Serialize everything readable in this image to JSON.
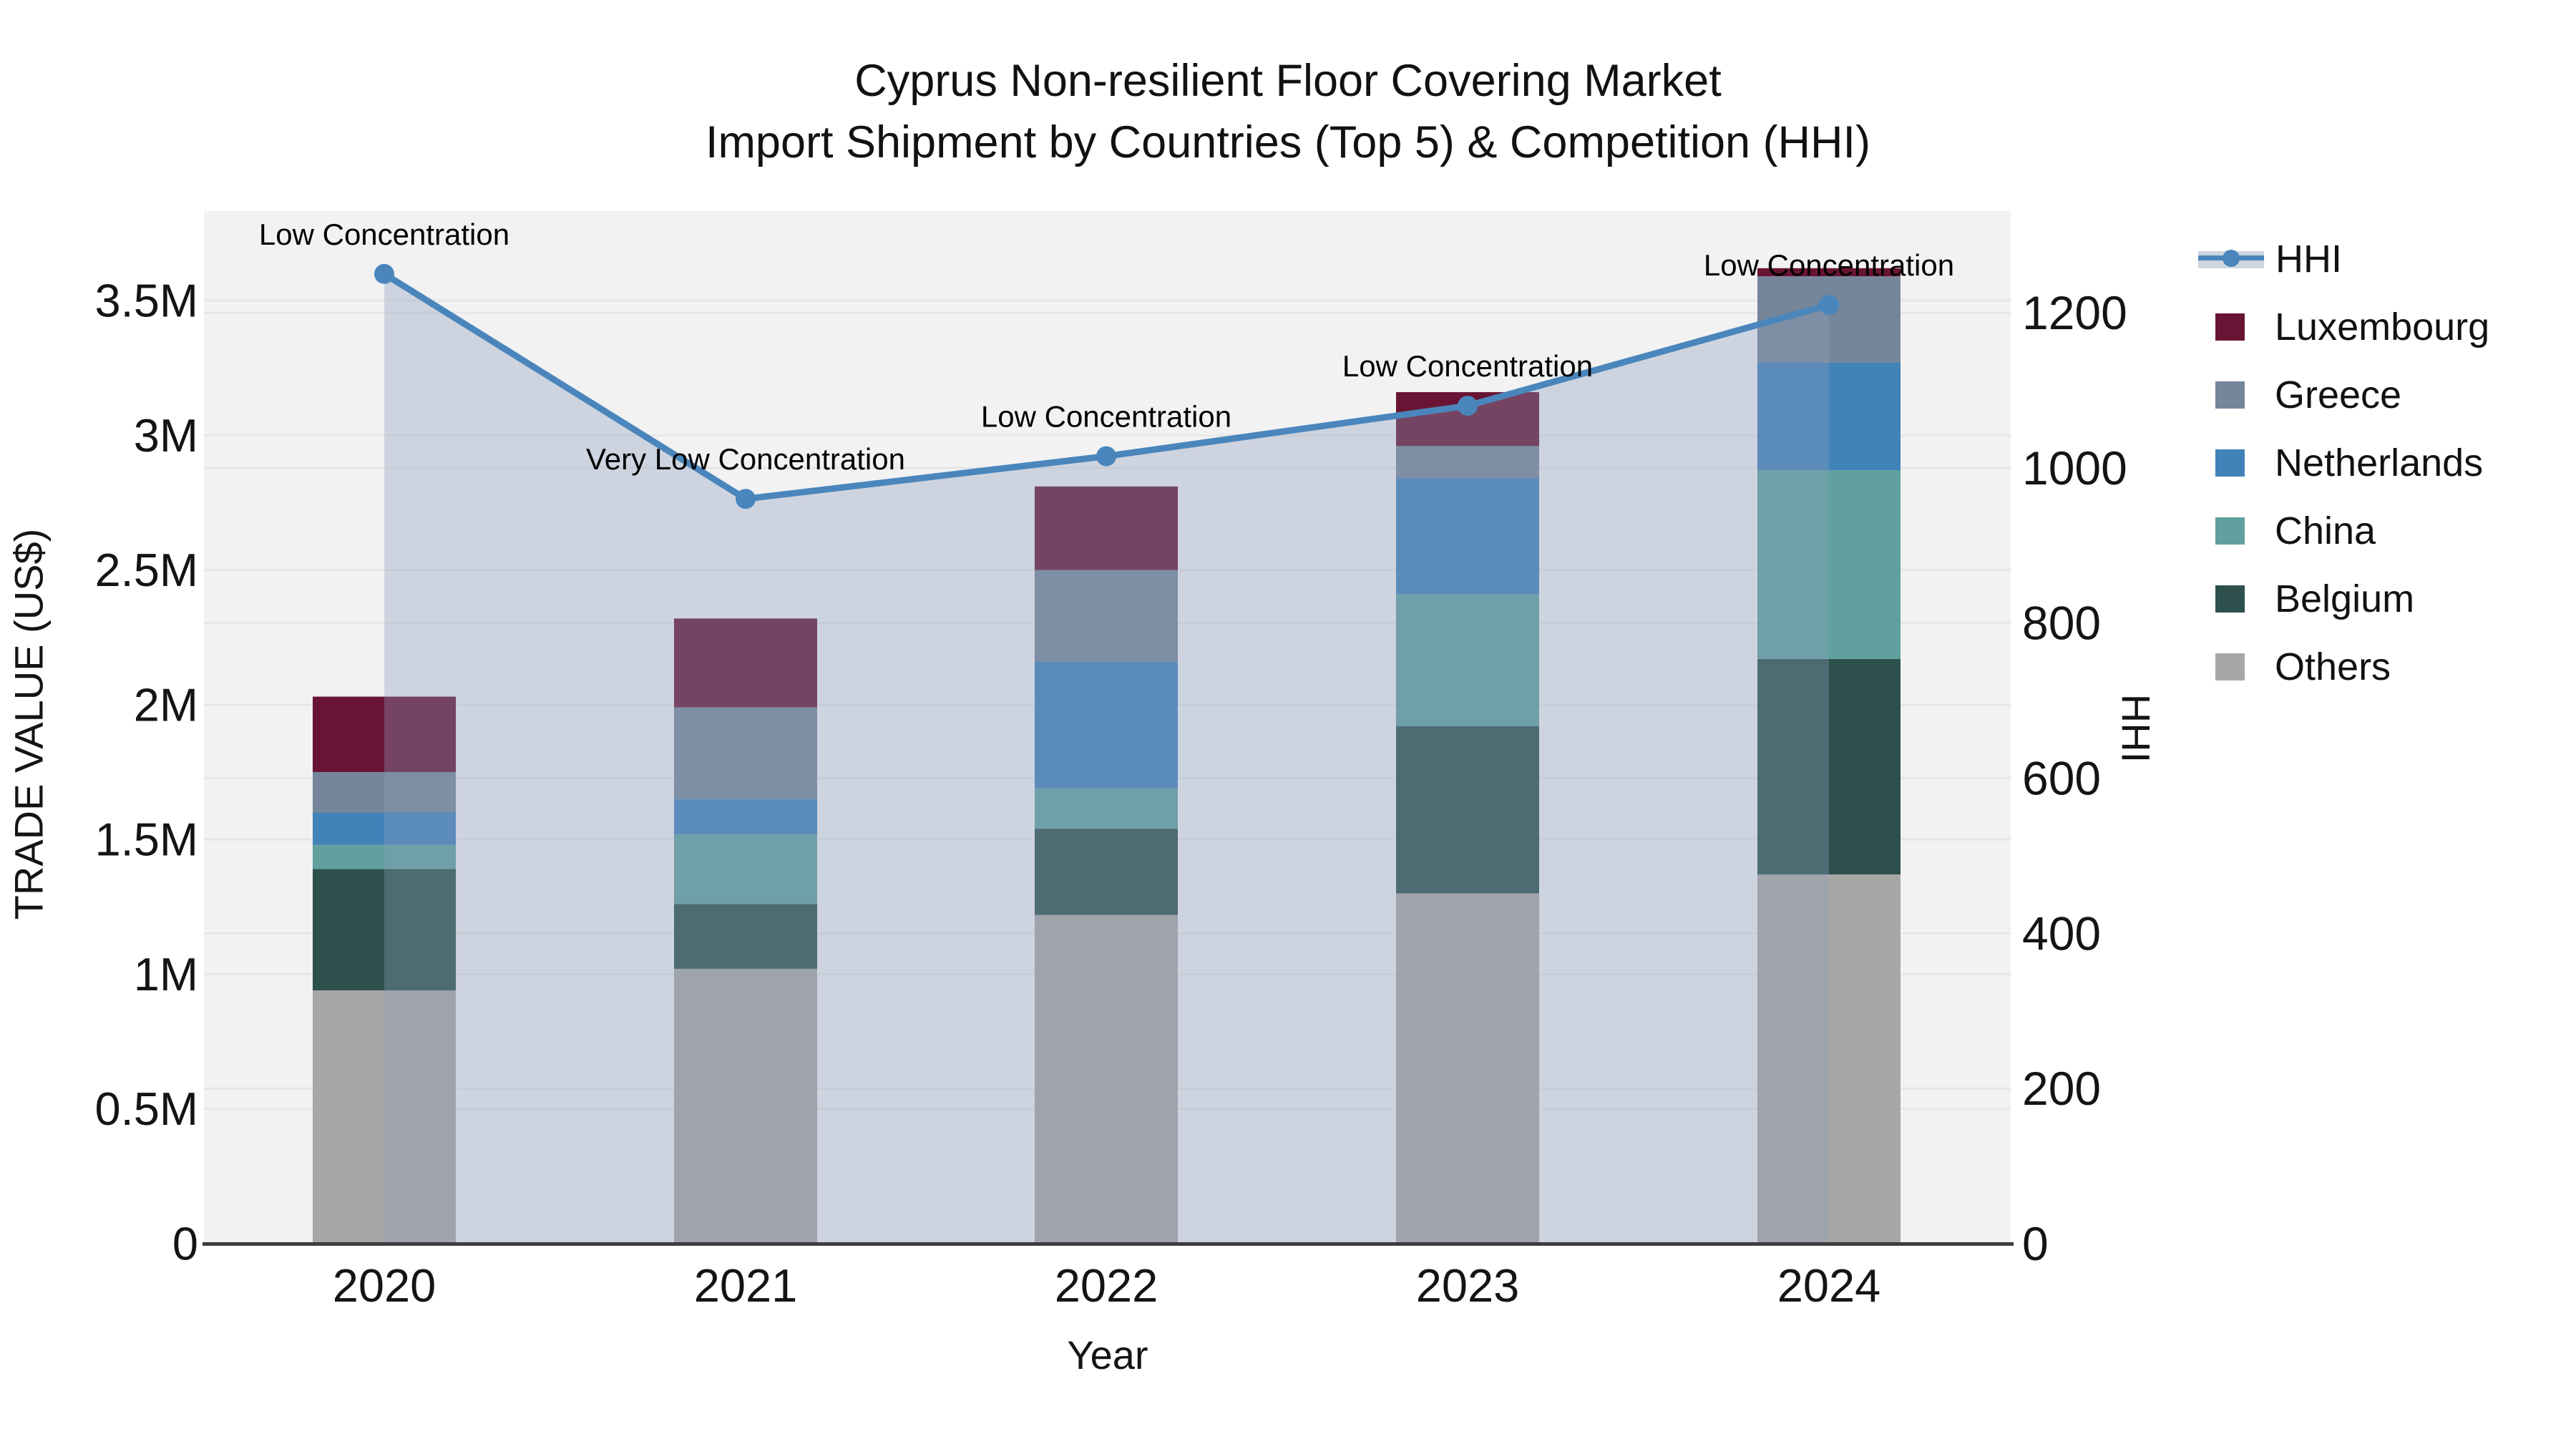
{
  "header": {
    "title": "Cyprus Non-resilient Floor Covering Market",
    "subtitle": "Import Shipment by Countries (Top 5) & Competition (HHI)"
  },
  "legend": {
    "items": [
      {
        "label": "HHI",
        "type": "line",
        "color": "#4A86BC",
        "band_color": "#CDD5E0"
      },
      {
        "label": "Luxembourg",
        "type": "swatch",
        "color": "#691434"
      },
      {
        "label": "Greece",
        "type": "swatch",
        "color": "#76869A"
      },
      {
        "label": "Netherlands",
        "type": "swatch",
        "color": "#4182B9"
      },
      {
        "label": "China",
        "type": "swatch",
        "color": "#60A09E"
      },
      {
        "label": "Belgium",
        "type": "swatch",
        "color": "#2D504D"
      },
      {
        "label": "Others",
        "type": "swatch",
        "color": "#A8A7A5"
      }
    ]
  },
  "chart_data": {
    "type": "bar",
    "subtype": "stacked-bars-with-hhi-line-overlay",
    "title": "Cyprus Non-resilient Floor Covering Market",
    "subtitle": "Import Shipment by Countries (Top 5) & Competition (HHI)",
    "xlabel": "Year",
    "ylabel_left": "TRADE VALUE (US$)",
    "ylabel_right": "HHI",
    "categories": [
      "2020",
      "2021",
      "2022",
      "2023",
      "2024"
    ],
    "y_left_ticks": [
      "0",
      "0.5M",
      "1M",
      "1.5M",
      "2M",
      "2.5M",
      "3M",
      "3.5M"
    ],
    "y_right_ticks": [
      "0",
      "200",
      "400",
      "600",
      "800",
      "1000",
      "1200"
    ],
    "ylim_left_million_usd": [
      0,
      3.83
    ],
    "ylim_right_hhi": [
      0,
      1335
    ],
    "grid": true,
    "legend_position": "right-outside",
    "stack_order_bottom_to_top": [
      "Others",
      "Belgium",
      "China",
      "Netherlands",
      "Greece",
      "Luxembourg"
    ],
    "series": [
      {
        "name": "Luxembourg",
        "color": "#691434",
        "values_million_usd": [
          0.28,
          0.33,
          0.31,
          0.2,
          0.03
        ]
      },
      {
        "name": "Greece",
        "color": "#76869A",
        "values_million_usd": [
          0.15,
          0.34,
          0.34,
          0.12,
          0.32
        ]
      },
      {
        "name": "Netherlands",
        "color": "#4182B9",
        "values_million_usd": [
          0.12,
          0.13,
          0.47,
          0.43,
          0.4
        ]
      },
      {
        "name": "China",
        "color": "#60A09E",
        "values_million_usd": [
          0.09,
          0.26,
          0.15,
          0.49,
          0.7
        ]
      },
      {
        "name": "Belgium",
        "color": "#2D504D",
        "values_million_usd": [
          0.45,
          0.24,
          0.32,
          0.62,
          0.8
        ]
      },
      {
        "name": "Others",
        "color": "#A8A7A5",
        "values_million_usd": [
          0.94,
          1.02,
          1.22,
          1.3,
          1.37
        ]
      }
    ],
    "bar_totals_million_usd": [
      2.03,
      2.32,
      2.81,
      3.16,
      3.62
    ],
    "hhi_line": {
      "name": "HHI",
      "values": [
        1250,
        960,
        1015,
        1080,
        1210
      ],
      "color": "#4A86BC",
      "marker": "circle",
      "area_fill": "rgba(140,157,185,0.35)",
      "annotations": [
        "Low Concentration",
        "Very Low Concentration",
        "Low Concentration",
        "Low Concentration",
        "Low Concentration"
      ]
    }
  }
}
